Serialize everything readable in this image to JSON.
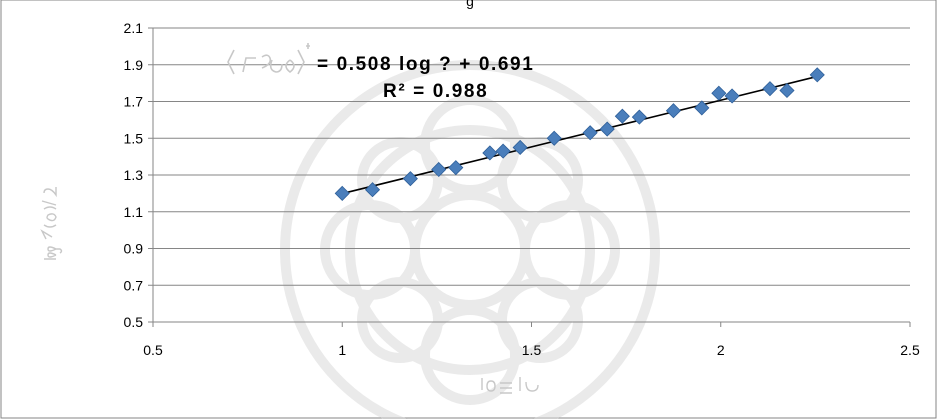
{
  "chart_data": {
    "type": "scatter",
    "title": "",
    "xlabel": "",
    "ylabel": "",
    "xlim": [
      0.5,
      2.5
    ],
    "ylim": [
      0.5,
      2.1
    ],
    "x_ticks": [
      "0.5",
      "1",
      "1.5",
      "2",
      "2.5"
    ],
    "y_ticks": [
      "0.5",
      "0.7",
      "0.9",
      "1.1",
      "1.3",
      "1.5",
      "1.7",
      "1.9",
      "2.1"
    ],
    "grid": "horizontal",
    "legend": "none",
    "series": [
      {
        "marker": "diamond",
        "color": "#4a7ebb",
        "x": [
          1.0,
          1.08,
          1.18,
          1.255,
          1.3,
          1.39,
          1.425,
          1.47,
          1.56,
          1.655,
          1.7,
          1.74,
          1.785,
          1.875,
          1.95,
          1.995,
          2.03,
          2.13,
          2.175,
          2.255
        ],
        "y": [
          1.2,
          1.22,
          1.28,
          1.33,
          1.34,
          1.42,
          1.43,
          1.45,
          1.5,
          1.53,
          1.55,
          1.62,
          1.615,
          1.65,
          1.665,
          1.745,
          1.73,
          1.77,
          1.76,
          1.845
        ]
      }
    ],
    "trendline": {
      "color": "#000000",
      "slope": 0.508,
      "intercept": 0.691,
      "x_range": [
        1.0,
        2.255
      ]
    },
    "equation_text": "= 0.508 log  ? + 0.691",
    "r2_text": "R² = 0.988"
  },
  "colors": {
    "background": "#ffffff",
    "gridline": "#868686",
    "axis": "#868686",
    "marker_fill": "#4a7ebb",
    "marker_stroke": "#2e5f99",
    "trendline": "#000000",
    "text": "#000000",
    "faded_label": "#c8c8c8",
    "watermark": "#d9d9d9"
  }
}
